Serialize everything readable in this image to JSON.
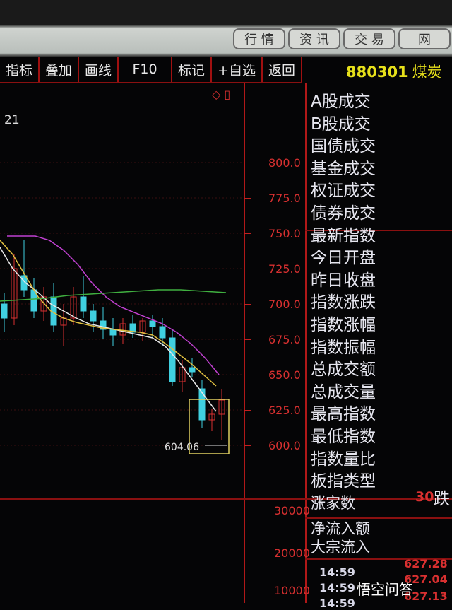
{
  "top_tabs": [
    "行 情",
    "资 讯",
    "交 易",
    "网"
  ],
  "toolbar": [
    "指标",
    "叠加",
    "画线",
    "F10",
    "标记",
    "+自选",
    "返回"
  ],
  "stock": {
    "code": "880301",
    "name": "煤炭"
  },
  "left_label": "21",
  "price_axis": [
    "800.0",
    "775.0",
    "750.0",
    "725.0",
    "700.0",
    "675.0",
    "650.0",
    "625.0",
    "600.0"
  ],
  "volume_axis": [
    "30000",
    "20000",
    "10000"
  ],
  "low_marker": "604.06",
  "info_items": [
    "A股成交",
    "B股成交",
    "国债成交",
    "基金成交",
    "权证成交",
    "债券成交",
    "最新指数",
    "今日开盘",
    "昨日收盘",
    "指数涨跌",
    "指数涨幅",
    "指数振幅",
    "总成交额",
    "总成交量",
    "最高指数",
    "最低指数",
    "指数量比",
    "板指类型"
  ],
  "rise_count": {
    "label": "涨家数",
    "value": "30",
    "fall_label": "跌"
  },
  "flow": [
    "净流入额",
    "大宗流入"
  ],
  "ticks": [
    {
      "time": "14:59",
      "price": "627.28"
    },
    {
      "time": "14:59",
      "price": "627.04"
    },
    {
      "time": "14:59",
      "price": "627.13"
    }
  ],
  "watermark": "悟空问答",
  "colors": {
    "up": "#d83030",
    "down": "#40d0e0",
    "ma_white": "#e8e8e8",
    "ma_yellow": "#e0c040",
    "ma_purple": "#c040d0",
    "ma_green": "#40b040"
  },
  "candles": [
    [
      700,
      708,
      680,
      690
    ],
    [
      690,
      735,
      685,
      725
    ],
    [
      720,
      745,
      705,
      710
    ],
    [
      710,
      718,
      690,
      695
    ],
    [
      695,
      712,
      688,
      705
    ],
    [
      705,
      715,
      680,
      685
    ],
    [
      685,
      700,
      670,
      690
    ],
    [
      690,
      712,
      685,
      705
    ],
    [
      705,
      720,
      690,
      695
    ],
    [
      695,
      700,
      680,
      688
    ],
    [
      688,
      698,
      675,
      682
    ],
    [
      682,
      690,
      670,
      678
    ],
    [
      678,
      690,
      672,
      686
    ],
    [
      686,
      692,
      676,
      680
    ],
    [
      680,
      690,
      674,
      688
    ],
    [
      688,
      692,
      676,
      684
    ],
    [
      684,
      690,
      670,
      676
    ],
    [
      676,
      682,
      642,
      645
    ],
    [
      645,
      660,
      638,
      655
    ],
    [
      655,
      662,
      648,
      652
    ],
    [
      640,
      646,
      612,
      618
    ],
    [
      618,
      626,
      610,
      622
    ],
    [
      622,
      640,
      604,
      632
    ]
  ],
  "ma": {
    "white": [
      740,
      725,
      715,
      708,
      700,
      695,
      690,
      686,
      684,
      682,
      680,
      678,
      676,
      670,
      660,
      648,
      636,
      624
    ],
    "yellow": [
      745,
      735,
      720,
      705,
      695,
      690,
      687,
      685,
      683,
      682,
      681,
      680,
      678,
      672,
      665,
      658,
      650,
      642
    ],
    "purple": [
      748,
      748,
      748,
      745,
      738,
      728,
      715,
      705,
      698,
      694,
      690,
      686,
      680,
      672,
      662,
      650
    ],
    "green": [
      702,
      703,
      704,
      706,
      707,
      708,
      709,
      710,
      710,
      709,
      708
    ]
  }
}
